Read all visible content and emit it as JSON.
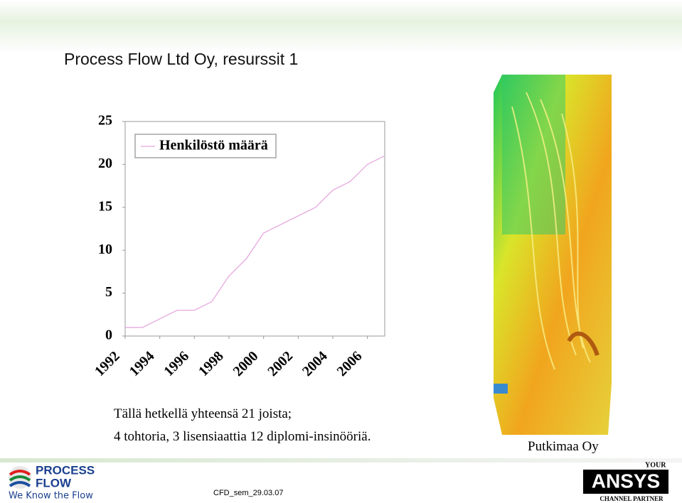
{
  "slide": {
    "title": "Process Flow Ltd Oy, resurssit 1",
    "body": [
      "Tällä hetkellä yhteensä 21 joista;",
      "4 tohtoria, 3 lisensiaattia 12 diplomi-insinööriä."
    ],
    "image_caption": "Putkimaa Oy",
    "footer": "CFD_sem_29.03.07",
    "logo": {
      "line1": "PROCESS",
      "line2": "FLOW",
      "slogan": "We Know the Flow"
    },
    "partner": {
      "top": "YOUR",
      "name": "ANSYS",
      "bottom": "CHANNEL PARTNER"
    }
  },
  "chart_data": {
    "type": "line",
    "x": [
      1992,
      1993,
      1994,
      1995,
      1996,
      1997,
      1998,
      1999,
      2000,
      2001,
      2002,
      2003,
      2004,
      2005,
      2006,
      2007
    ],
    "series": [
      {
        "name": "Henkilöstö määrä",
        "color": "#e6a8e0",
        "values": [
          1,
          1,
          2,
          3,
          3,
          4,
          7,
          9,
          12,
          13,
          14,
          15,
          17,
          18,
          20,
          21
        ]
      }
    ],
    "xlim": [
      1992,
      2007
    ],
    "xticks": [
      1992,
      1994,
      1996,
      1998,
      2000,
      2002,
      2004,
      2006
    ],
    "ylim": [
      0,
      25
    ],
    "yticks": [
      0,
      5,
      10,
      15,
      20,
      25
    ],
    "grid": false,
    "legend": "upper left"
  }
}
